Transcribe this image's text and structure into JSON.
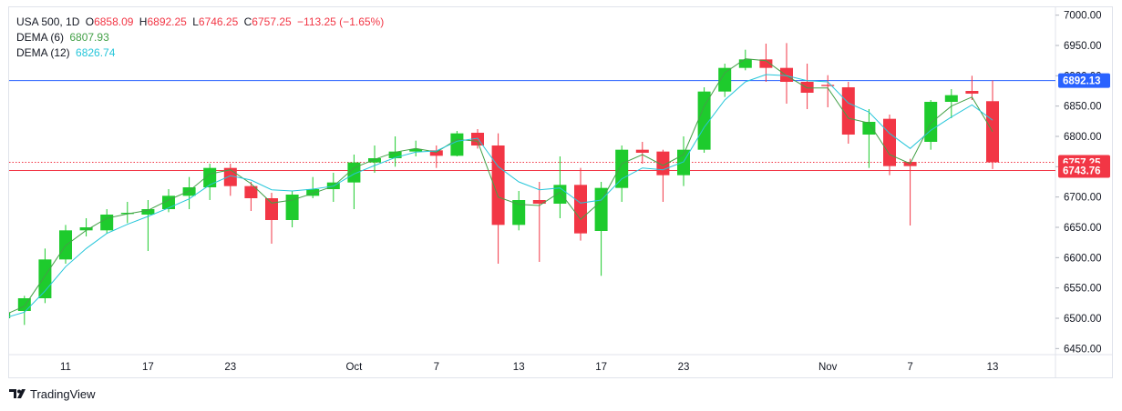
{
  "chart_data": {
    "type": "candlestick",
    "symbol": "USA 500, 1D",
    "ohlc_labels": [
      "O",
      "H",
      "L",
      "C"
    ],
    "change_label": "−113.25 (−1.65%)",
    "categories": [
      null,
      null,
      null,
      "11",
      null,
      null,
      null,
      "17",
      null,
      null,
      null,
      "23",
      null,
      null,
      null,
      null,
      null,
      "Oct",
      null,
      null,
      null,
      "7",
      null,
      null,
      null,
      "13",
      null,
      null,
      null,
      "17",
      null,
      null,
      null,
      "23",
      null,
      null,
      null,
      null,
      null,
      null,
      "Nov",
      null,
      null,
      null,
      "7",
      null,
      null,
      null,
      "13"
    ],
    "open": [
      6500,
      6512,
      6533,
      6597,
      6645,
      6645,
      6672,
      6671,
      6680,
      6702,
      6716,
      6748,
      6718,
      6698,
      6662,
      6702,
      6713,
      6724,
      6757,
      6764,
      6775,
      6777,
      6768,
      6806,
      6785,
      6654,
      6695,
      6689,
      6720,
      6644,
      6715,
      6778,
      6775,
      6736,
      6778,
      6874,
      6913,
      6927,
      6913,
      6890,
      6885,
      6881,
      6803,
      6829,
      6758,
      6791,
      6857,
      6875,
      6858.09
    ],
    "high": [
      6515,
      6537,
      6615,
      6654,
      6665,
      6680,
      6692,
      6695,
      6713,
      6733,
      6755,
      6755,
      6725,
      6707,
      6710,
      6733,
      6740,
      6770,
      6785,
      6800,
      6793,
      6785,
      6809,
      6812,
      6805,
      6710,
      6725,
      6767,
      6748,
      6725,
      6785,
      6791,
      6778,
      6800,
      6881,
      6920,
      6943,
      6953,
      6954,
      6920,
      6901,
      6890,
      6845,
      6836,
      6763,
      6860,
      6878,
      6900,
      6892.25
    ],
    "low": [
      6495,
      6489,
      6525,
      6590,
      6635,
      6640,
      6657,
      6611,
      6675,
      6680,
      6695,
      6702,
      6677,
      6623,
      6650,
      6698,
      6692,
      6680,
      6740,
      6750,
      6767,
      6748,
      6767,
      6780,
      6590,
      6645,
      6593,
      6665,
      6628,
      6570,
      6692,
      6755,
      6692,
      6718,
      6773,
      6865,
      6909,
      6890,
      6854,
      6845,
      6848,
      6788,
      6748,
      6736,
      6653,
      6778,
      6830,
      6860,
      6746.25
    ],
    "close": [
      6510,
      6533,
      6597,
      6645,
      6650,
      6671,
      6674,
      6680,
      6702,
      6716,
      6748,
      6718,
      6698,
      6662,
      6704,
      6713,
      6724,
      6757,
      6764,
      6775,
      6779,
      6768,
      6805,
      6785,
      6654,
      6695,
      6689,
      6720,
      6640,
      6715,
      6778,
      6773,
      6736,
      6778,
      6874,
      6913,
      6927,
      6913,
      6890,
      6872,
      6883,
      6803,
      6824,
      6751,
      6751,
      6857,
      6868,
      6870.5,
      6757.25
    ],
    "up_color": "#1ecb2d",
    "down_color": "#f23645",
    "series": [
      {
        "name": "DEMA (6)",
        "color": "#43a047",
        "values": [
          6505,
          6520,
          6570,
          6620,
          6645,
          6665,
          6672,
          6678,
          6695,
          6710,
          6738,
          6745,
          6722,
          6690,
          6695,
          6706,
          6718,
          6748,
          6762,
          6774,
          6780,
          6774,
          6795,
          6792,
          6700,
          6688,
          6686,
          6708,
          6663,
          6693,
          6755,
          6770,
          6752,
          6770,
          6850,
          6905,
          6928,
          6925,
          6900,
          6880,
          6880,
          6830,
          6822,
          6770,
          6755,
          6822,
          6850,
          6865,
          6807.93
        ]
      },
      {
        "name": "DEMA (12)",
        "color": "#26c6da",
        "values": [
          6500,
          6510,
          6545,
          6585,
          6615,
          6640,
          6655,
          6668,
          6682,
          6697,
          6720,
          6735,
          6728,
          6712,
          6710,
          6713,
          6718,
          6738,
          6752,
          6765,
          6774,
          6776,
          6792,
          6797,
          6750,
          6725,
          6712,
          6715,
          6690,
          6695,
          6730,
          6748,
          6745,
          6758,
          6815,
          6860,
          6890,
          6902,
          6900,
          6892,
          6890,
          6855,
          6840,
          6805,
          6780,
          6810,
          6832,
          6852,
          6826.74
        ]
      }
    ],
    "ylim": [
      6440,
      7013
    ],
    "yticks": [
      {
        "value": 6450,
        "label": "6450.00"
      },
      {
        "value": 6500,
        "label": "6500.00"
      },
      {
        "value": 6550,
        "label": "6550.00"
      },
      {
        "value": 6600,
        "label": "6600.00"
      },
      {
        "value": 6650,
        "label": "6650.00"
      },
      {
        "value": 6700,
        "label": "6700.00"
      },
      {
        "value": 6750,
        "label": "6750.00"
      },
      {
        "value": 6800,
        "label": "6800.00"
      },
      {
        "value": 6850,
        "label": "6850.00"
      },
      {
        "value": 6900,
        "label": "6900.00"
      },
      {
        "value": 6950,
        "label": "6950.00"
      },
      {
        "value": 7000,
        "label": "7000.00"
      }
    ],
    "grid": false,
    "price_lines": [
      {
        "value": 6892.13,
        "color": "#2962ff",
        "style": "solid"
      },
      {
        "value": 6757.25,
        "color": "#f23645",
        "style": "dotted"
      },
      {
        "value": 6743.76,
        "color": "#f23645",
        "style": "solid"
      }
    ],
    "brand": "TradingView"
  }
}
